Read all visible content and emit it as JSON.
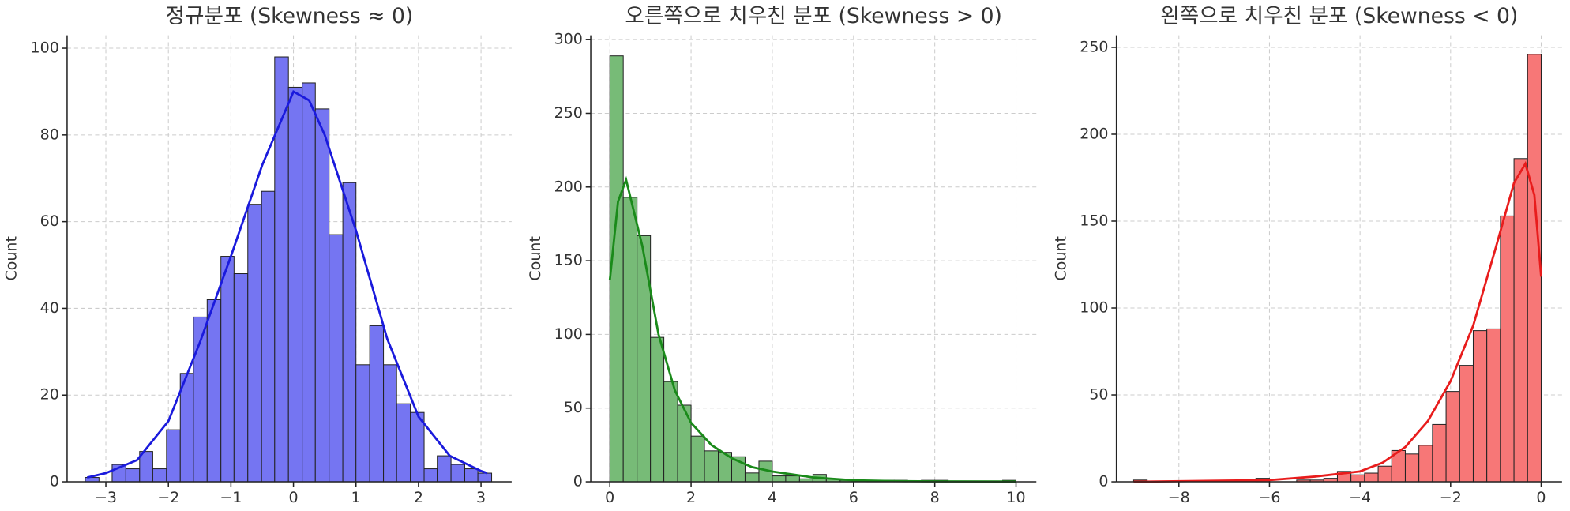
{
  "chart_data": [
    {
      "type": "histogram",
      "title": "정규분포 (Skewness ≈ 0)",
      "ylabel": "Count",
      "color": "#7575f2",
      "line_color": "#1a1adc",
      "bins": [
        -3.33,
        -3.11,
        -2.9,
        -2.68,
        -2.46,
        -2.25,
        -2.03,
        -1.81,
        -1.6,
        -1.38,
        -1.16,
        -0.95,
        -0.73,
        -0.51,
        -0.3,
        -0.08,
        0.14,
        0.35,
        0.57,
        0.79,
        1.0,
        1.22,
        1.44,
        1.65,
        1.87,
        2.09,
        2.3,
        2.52,
        2.74,
        2.95,
        3.17
      ],
      "values": [
        1,
        0,
        4,
        3,
        7,
        3,
        12,
        25,
        38,
        42,
        52,
        48,
        64,
        67,
        98,
        91,
        92,
        86,
        57,
        69,
        27,
        36,
        27,
        18,
        16,
        3,
        6,
        4,
        3,
        2
      ],
      "kde": {
        "x": [
          -3.3,
          -3,
          -2.5,
          -2,
          -1.5,
          -1,
          -0.5,
          0,
          0.25,
          0.5,
          1,
          1.5,
          2,
          2.5,
          3,
          3.1
        ],
        "values": [
          1,
          2,
          5,
          14,
          32,
          52,
          73,
          90,
          88,
          80,
          58,
          33,
          15,
          6,
          2.5,
          2
        ]
      },
      "xlim": [
        -3.62,
        3.49
      ],
      "ylim": [
        0,
        103
      ],
      "xticks": [
        {
          "value": -3,
          "label": "−3"
        },
        {
          "value": -2,
          "label": "−2"
        },
        {
          "value": -1,
          "label": "−1"
        },
        0,
        1,
        2,
        3
      ],
      "yticks": [
        0,
        20,
        40,
        60,
        80,
        100
      ],
      "grid": true
    },
    {
      "type": "histogram",
      "title": "오른쪽으로 치우친 분포 (Skewness > 0)",
      "ylabel": "Count",
      "color": "#77bb77",
      "line_color": "#1a8a1a",
      "bins": [
        0,
        0.33,
        0.67,
        1,
        1.33,
        1.67,
        2,
        2.33,
        2.67,
        3,
        3.33,
        3.67,
        4,
        4.33,
        4.67,
        5,
        5.33,
        5.67,
        6,
        6.33,
        6.67,
        7,
        7.33,
        7.67,
        8,
        8.33,
        8.67,
        9,
        9.33,
        9.67,
        10
      ],
      "values": [
        289,
        193,
        167,
        98,
        68,
        52,
        31,
        21,
        20,
        17,
        6,
        14,
        4,
        4,
        2,
        5,
        2,
        1,
        0,
        1,
        1,
        1,
        0,
        1,
        1,
        0,
        0,
        0,
        0,
        1
      ],
      "kde": {
        "x": [
          0,
          0.2,
          0.4,
          0.8,
          1.2,
          1.6,
          2,
          2.5,
          3,
          3.5,
          4,
          5,
          6,
          7,
          8,
          10
        ],
        "values": [
          137,
          190,
          205,
          160,
          100,
          62,
          40,
          25,
          16,
          10,
          7,
          3,
          1,
          0.5,
          0.3,
          0.2
        ]
      },
      "xlim": [
        -0.47,
        10.5
      ],
      "ylim": [
        0,
        303
      ],
      "xticks": [
        0,
        2,
        4,
        6,
        8,
        10
      ],
      "yticks": [
        0,
        50,
        100,
        150,
        200,
        250,
        300
      ],
      "grid": true
    },
    {
      "type": "histogram",
      "title": "왼쪽으로 치우친 분포 (Skewness < 0)",
      "ylabel": "Count",
      "color": "#f77777",
      "line_color": "#e81c1c",
      "bins": [
        -9,
        -8.7,
        -8.4,
        -8.1,
        -7.8,
        -7.5,
        -7.2,
        -6.9,
        -6.6,
        -6.3,
        -6,
        -5.7,
        -5.4,
        -5.1,
        -4.8,
        -4.5,
        -4.2,
        -3.9,
        -3.6,
        -3.3,
        -3,
        -2.7,
        -2.4,
        -2.1,
        -1.8,
        -1.5,
        -1.2,
        -0.9,
        -0.6,
        -0.3,
        0
      ],
      "values": [
        1,
        0,
        0,
        0,
        0,
        0,
        0,
        0,
        0,
        2,
        0,
        0,
        1,
        1,
        2,
        6,
        4,
        5,
        9,
        18,
        16,
        21,
        33,
        52,
        67,
        87,
        88,
        153,
        186,
        246
      ],
      "kde": {
        "x": [
          -9,
          -6,
          -5,
          -4,
          -3.5,
          -3,
          -2.5,
          -2,
          -1.5,
          -1,
          -0.6,
          -0.35,
          -0.15,
          0
        ],
        "values": [
          0,
          1,
          3,
          6,
          11,
          20,
          35,
          58,
          90,
          135,
          172,
          183,
          165,
          118
        ]
      },
      "xlim": [
        -9.38,
        0.46
      ],
      "ylim": [
        0,
        257
      ],
      "xticks": [
        {
          "value": -8,
          "label": "−8"
        },
        {
          "value": -6,
          "label": "−6"
        },
        {
          "value": -4,
          "label": "−4"
        },
        {
          "value": -2,
          "label": "−2"
        },
        0
      ],
      "yticks": [
        0,
        50,
        100,
        150,
        200,
        250
      ],
      "grid": true
    }
  ]
}
